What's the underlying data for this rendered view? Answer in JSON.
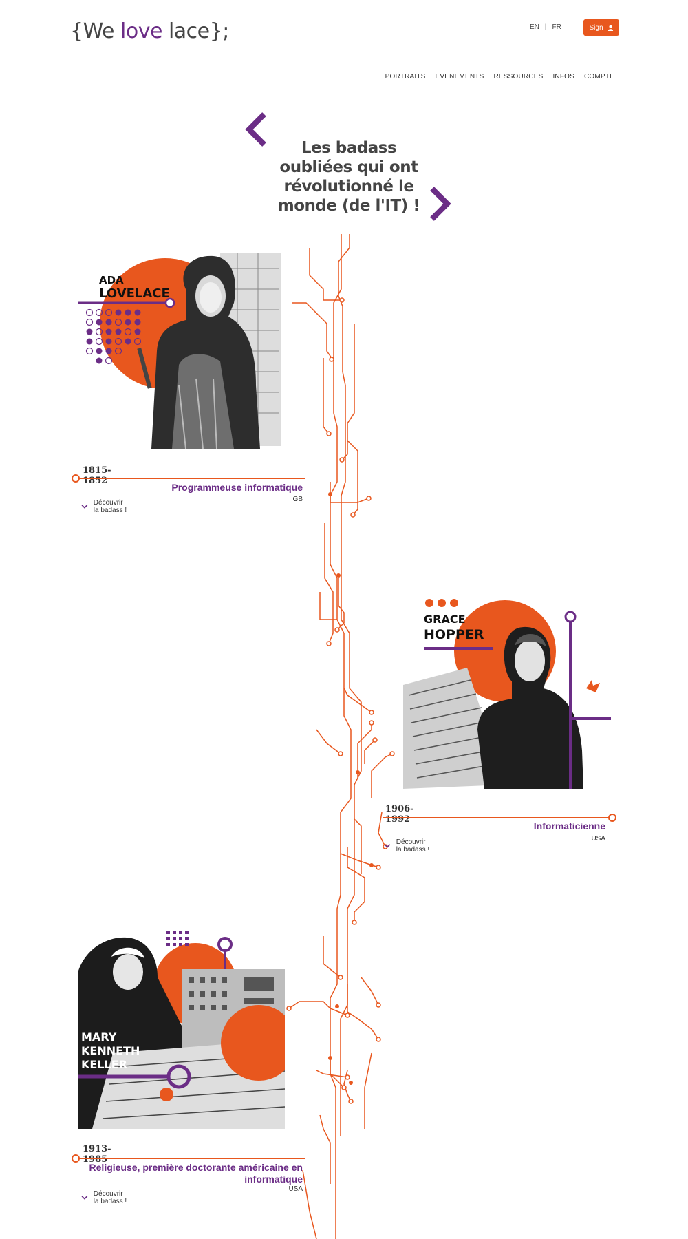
{
  "header": {
    "logo": {
      "open": "{We ",
      "accent": "love",
      "close": " lace};"
    },
    "lang": {
      "en": "EN",
      "sep": "|",
      "fr": "FR"
    },
    "sign_label": "Sign",
    "nav": [
      "PORTRAITS",
      "EVENEMENTS",
      "RESSOURCES",
      "INFOS",
      "COMPTE"
    ]
  },
  "hero": {
    "title": "Les badass oubliées qui ont révolutionné le monde (de l'IT) !"
  },
  "colors": {
    "orange": "#e8571e",
    "purple": "#6b2d86",
    "text": "#333333"
  },
  "cards": [
    {
      "name_line1": "ADA",
      "name_line2": "LOVELACE",
      "years": "1815-1852",
      "role": "Programmeuse informatique",
      "country": "GB",
      "discover": "Découvrir la badass !"
    },
    {
      "name_line1": "GRACE",
      "name_line2": "HOPPER",
      "years": "1906-1992",
      "role": "Informaticienne",
      "country": "USA",
      "discover": "Découvrir la badass !"
    },
    {
      "name_line1": "MARY",
      "name_line2": "KENNETH",
      "name_line3": "KELLER",
      "years": "1913-1985",
      "role": "Religieuse, première doctorante américaine en informatique",
      "country": "USA",
      "discover": "Découvrir la badass !"
    }
  ]
}
